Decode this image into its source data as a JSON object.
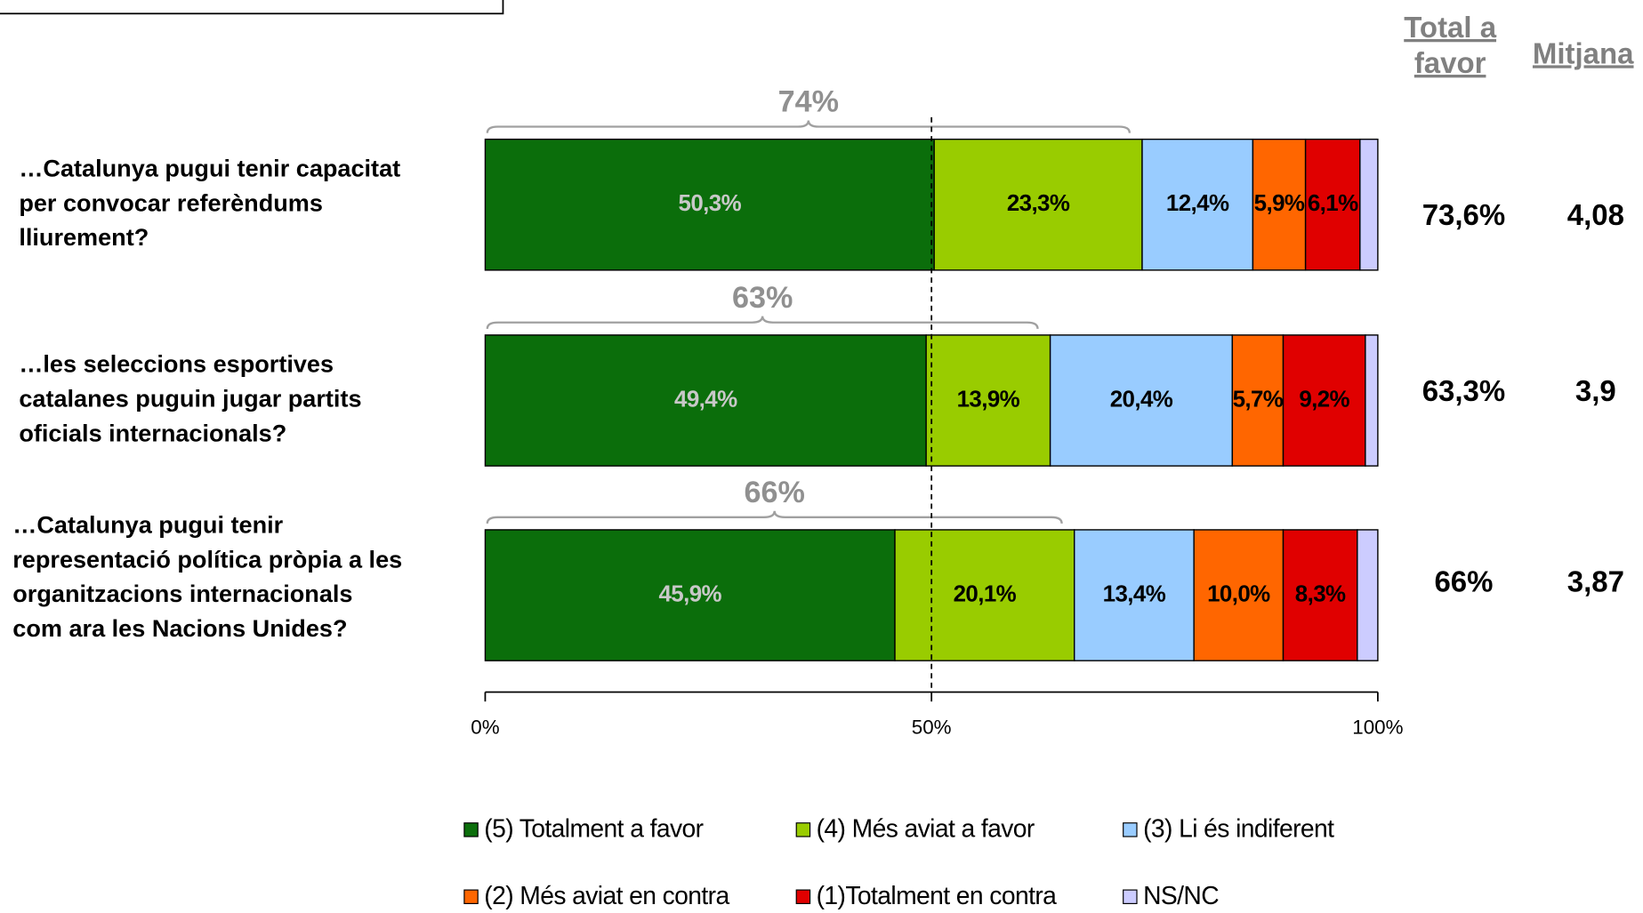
{
  "chart_data": {
    "type": "stacked-bar-horizontal",
    "categories": [
      "…Catalunya pugui tenir capacitat\nper convocar referèndums\nlliurement?",
      "…les seleccions esportives\ncatalanes puguin jugar partits\noficials internacionals?",
      "…Catalunya pugui tenir\nrepresentació política pròpia a les\norganitzacions internacionals\ncom ara les Nacions Unides?"
    ],
    "series": [
      {
        "name": "(5) Totalment a favor",
        "color": "#0b6e0b",
        "label_color": "#c8c8c8",
        "values": [
          50.3,
          49.4,
          45.9
        ],
        "value_labels": [
          "50,3%",
          "49,4%",
          "45,9%"
        ]
      },
      {
        "name": "(4) Més aviat a favor",
        "color": "#99cc00",
        "label_color": "#000000",
        "values": [
          23.3,
          13.9,
          20.1
        ],
        "value_labels": [
          "23,3%",
          "13,9%",
          "20,1%"
        ]
      },
      {
        "name": "(3) Li és indiferent",
        "color": "#99ccff",
        "label_color": "#000000",
        "values": [
          12.4,
          20.4,
          13.4
        ],
        "value_labels": [
          "12,4%",
          "20,4%",
          "13,4%"
        ]
      },
      {
        "name": "(2) Més aviat en contra",
        "color": "#ff6600",
        "label_color": "#000000",
        "values": [
          5.9,
          5.7,
          10.0
        ],
        "value_labels": [
          "5,9%",
          "5,7%",
          "10,0%"
        ]
      },
      {
        "name": "(1)Totalment en contra",
        "color": "#e00000",
        "label_color": "#000000",
        "values": [
          6.1,
          9.2,
          8.3
        ],
        "value_labels": [
          "6,1%",
          "9,2%",
          "8,3%"
        ]
      },
      {
        "name": "NS/NC",
        "color": "#ccccff",
        "label_color": "#000000",
        "values": [
          2.0,
          1.4,
          2.3
        ],
        "value_labels": [
          null,
          null,
          null
        ]
      }
    ],
    "brackets": [
      "74%",
      "63%",
      "66%"
    ],
    "columns": [
      {
        "header": "Total a\nfavor",
        "values": [
          "73,6%",
          "63,3%",
          "66%"
        ]
      },
      {
        "header": "Mitjana",
        "values": [
          "4,08",
          "3,9",
          "3,87"
        ]
      }
    ],
    "xlim": [
      0,
      100
    ],
    "xticks": [
      {
        "value": 0,
        "label": "0%"
      },
      {
        "value": 50,
        "label": "50%"
      },
      {
        "value": 100,
        "label": "100%"
      }
    ],
    "reference_line": 50
  }
}
